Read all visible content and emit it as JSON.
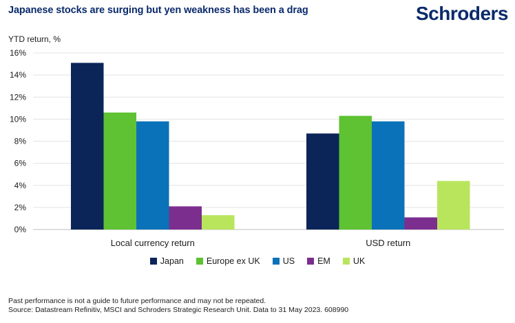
{
  "header": {
    "title": "Japanese stocks are surging but yen weakness has been a drag",
    "logo_text": "Schroders"
  },
  "chart_data": {
    "type": "bar",
    "ylabel": "YTD return, %",
    "ylim": [
      0,
      16
    ],
    "yticks": [
      0,
      2,
      4,
      6,
      8,
      10,
      12,
      14,
      16
    ],
    "ytick_labels": [
      "0%",
      "2%",
      "4%",
      "6%",
      "8%",
      "10%",
      "12%",
      "14%",
      "16%"
    ],
    "grid": true,
    "legend_position": "bottom-center",
    "categories": [
      "Local currency return",
      "USD return"
    ],
    "series": [
      {
        "name": "Japan",
        "color": "#0b2559",
        "values": [
          15.1,
          8.7
        ]
      },
      {
        "name": "Europe ex UK",
        "color": "#5ec232",
        "values": [
          10.6,
          10.3
        ]
      },
      {
        "name": "US",
        "color": "#0a72b8",
        "values": [
          9.8,
          9.8
        ]
      },
      {
        "name": "EM",
        "color": "#7b2e8e",
        "values": [
          2.1,
          1.1
        ]
      },
      {
        "name": "UK",
        "color": "#b9e55d",
        "values": [
          1.3,
          4.4
        ]
      }
    ]
  },
  "footer": {
    "line1": "Past performance is not a guide to future performance and may not be repeated.",
    "line2": "Source: Datastream Refinitiv, MSCI and Schroders Strategic Research Unit. Data to 31 May 2023. 608990"
  }
}
